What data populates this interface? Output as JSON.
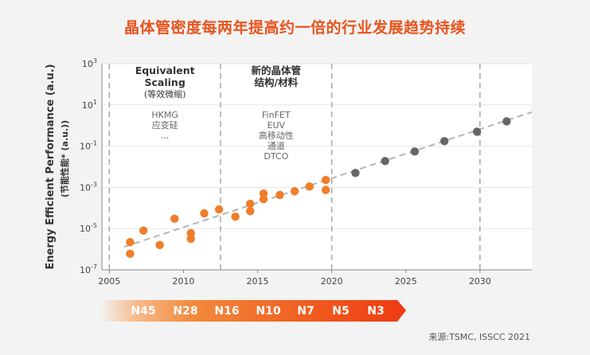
{
  "header": {
    "title": "晶体管密度每两年提高约一倍的行业发展趋势持续"
  },
  "chart_data": {
    "type": "scatter",
    "title": "晶体管密度每两年提高约一倍的行业发展趋势持续",
    "ylabel": "Energy Efficient Performance (a.u.)",
    "ylabel_sub": "(节能性能* (a.u.))",
    "xlabel": "",
    "xlim": [
      2004.5,
      2033.5
    ],
    "ylim_log10": [
      -7,
      3
    ],
    "yscale": "log",
    "x_ticks": [
      "2005",
      "2010",
      "2015",
      "2020",
      "2025",
      "2030"
    ],
    "y_ticks": [
      {
        "base": "10",
        "exp": "3"
      },
      {
        "base": "10",
        "exp": "1"
      },
      {
        "base": "10",
        "exp": "-1"
      },
      {
        "base": "10",
        "exp": "-3"
      },
      {
        "base": "10",
        "exp": "-5"
      },
      {
        "base": "10",
        "exp": "-7"
      }
    ],
    "grid": "horizontal",
    "eras": [
      2005.0,
      2012.5,
      2020.0,
      2030.0
    ],
    "series": [
      {
        "color": "#f07d2a",
        "points": [
          {
            "x": 2006.4,
            "y": 6e-07
          },
          {
            "x": 2006.4,
            "y": 2.2e-06
          },
          {
            "x": 2007.3,
            "y": 8e-06
          },
          {
            "x": 2008.4,
            "y": 1.6e-06
          },
          {
            "x": 2009.4,
            "y": 3e-05
          },
          {
            "x": 2010.5,
            "y": 3.2e-06
          },
          {
            "x": 2010.5,
            "y": 6e-06
          },
          {
            "x": 2011.4,
            "y": 5.5e-05
          },
          {
            "x": 2012.4,
            "y": 8.5e-05
          },
          {
            "x": 2013.5,
            "y": 3.8e-05
          },
          {
            "x": 2014.5,
            "y": 0.00016
          },
          {
            "x": 2014.5,
            "y": 7e-05
          },
          {
            "x": 2015.4,
            "y": 0.0005
          },
          {
            "x": 2015.4,
            "y": 0.00027
          },
          {
            "x": 2016.5,
            "y": 0.00043
          },
          {
            "x": 2017.5,
            "y": 0.00065
          },
          {
            "x": 2018.5,
            "y": 0.0011
          },
          {
            "x": 2019.6,
            "y": 0.0023
          },
          {
            "x": 2019.6,
            "y": 0.00075
          }
        ]
      },
      {
        "color": "#666666",
        "points": [
          {
            "x": 2021.6,
            "y": 0.005
          },
          {
            "x": 2023.6,
            "y": 0.019
          },
          {
            "x": 2025.6,
            "y": 0.055
          },
          {
            "x": 2027.6,
            "y": 0.175
          },
          {
            "x": 2029.8,
            "y": 0.5
          },
          {
            "x": 2031.8,
            "y": 1.6
          }
        ]
      }
    ],
    "trendline": {
      "from": [
        2006.0,
        1.3e-06
      ],
      "to": [
        2033.5,
        4.5
      ],
      "color": "#b5b5b5"
    },
    "annotations": [
      {
        "head": [
          "Equivalent",
          "Scaling"
        ],
        "sub": "(等效微缩)",
        "items": [
          "HKMG",
          "应变硅",
          "..."
        ]
      },
      {
        "head": [
          "新的晶体管",
          "结构/材料"
        ],
        "sub": "",
        "items": [
          "FinFET",
          "EUV",
          "高移动性",
          "通道",
          "DTCO"
        ]
      }
    ]
  },
  "nodes": [
    "N45",
    "N28",
    "N16",
    "N10",
    "N7",
    "N5",
    "N3"
  ],
  "source": "来源:TSMC, ISSCC 2021"
}
